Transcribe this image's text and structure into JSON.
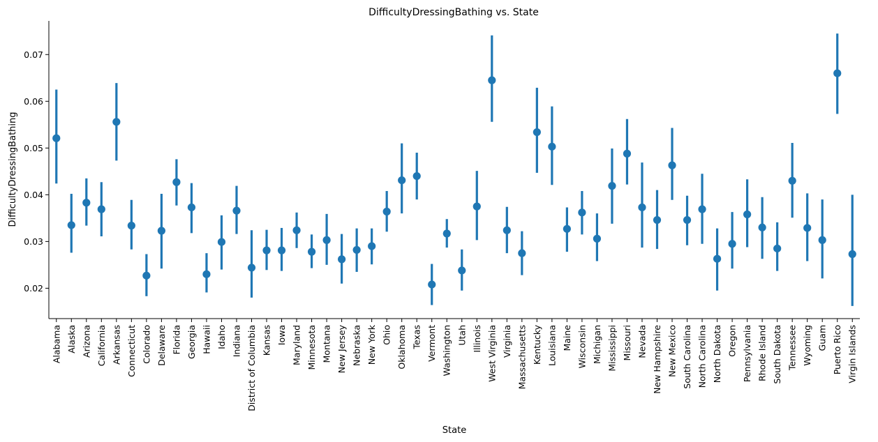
{
  "chart_data": {
    "type": "point",
    "title": "DifficultyDressingBathing vs. State",
    "xlabel": "State",
    "ylabel": "DifficultyDressingBathing",
    "ylim": [
      0.0135,
      0.0772
    ],
    "yticks": [
      0.02,
      0.03,
      0.04,
      0.05,
      0.06,
      0.07
    ],
    "ytick_labels": [
      "0.02",
      "0.03",
      "0.04",
      "0.05",
      "0.06",
      "0.07"
    ],
    "grid": false,
    "color": "#1f77b4",
    "categories": [
      "Alabama",
      "Alaska",
      "Arizona",
      "California",
      "Arkansas",
      "Connecticut",
      "Colorado",
      "Delaware",
      "Florida",
      "Georgia",
      "Hawaii",
      "Idaho",
      "Indiana",
      "District of Columbia",
      "Kansas",
      "Iowa",
      "Maryland",
      "Minnesota",
      "Montana",
      "New Jersey",
      "Nebraska",
      "New York",
      "Ohio",
      "Oklahoma",
      "Texas",
      "Vermont",
      "Washington",
      "Utah",
      "Illinois",
      "West Virginia",
      "Virginia",
      "Massachusetts",
      "Kentucky",
      "Louisiana",
      "Maine",
      "Wisconsin",
      "Michigan",
      "Mississippi",
      "Missouri",
      "Nevada",
      "New Hampshire",
      "New Mexico",
      "South Carolina",
      "North Carolina",
      "North Dakota",
      "Oregon",
      "Pennsylvania",
      "Rhode Island",
      "South Dakota",
      "Tennessee",
      "Wyoming",
      "Guam",
      "Puerto Rico",
      "Virgin Islands"
    ],
    "values": [
      0.0521,
      0.0335,
      0.0383,
      0.0369,
      0.0556,
      0.0334,
      0.0227,
      0.0323,
      0.0427,
      0.0373,
      0.023,
      0.0299,
      0.0366,
      0.0244,
      0.0281,
      0.0281,
      0.0324,
      0.0278,
      0.0303,
      0.0262,
      0.0282,
      0.029,
      0.0364,
      0.0431,
      0.044,
      0.0208,
      0.0317,
      0.0238,
      0.0375,
      0.0645,
      0.0324,
      0.0275,
      0.0534,
      0.0503,
      0.0327,
      0.0362,
      0.0306,
      0.0419,
      0.0488,
      0.0373,
      0.0346,
      0.0463,
      0.0346,
      0.0369,
      0.0263,
      0.0295,
      0.0358,
      0.033,
      0.0285,
      0.043,
      0.0329,
      0.0303,
      0.066,
      0.0273
    ],
    "ci_low": [
      0.0424,
      0.0276,
      0.0334,
      0.0311,
      0.0473,
      0.0283,
      0.0183,
      0.0242,
      0.0377,
      0.0318,
      0.0191,
      0.024,
      0.0316,
      0.018,
      0.0239,
      0.0237,
      0.0286,
      0.0243,
      0.025,
      0.021,
      0.0235,
      0.0251,
      0.0321,
      0.036,
      0.039,
      0.0164,
      0.0287,
      0.0195,
      0.0303,
      0.0556,
      0.0275,
      0.0228,
      0.0447,
      0.0421,
      0.0278,
      0.0315,
      0.0258,
      0.0338,
      0.0422,
      0.0287,
      0.0284,
      0.0389,
      0.0292,
      0.0295,
      0.0195,
      0.0242,
      0.0288,
      0.0263,
      0.0237,
      0.0351,
      0.0258,
      0.0221,
      0.0573,
      0.0162
    ],
    "ci_high": [
      0.0625,
      0.0402,
      0.0435,
      0.0427,
      0.0639,
      0.0389,
      0.0273,
      0.0402,
      0.0476,
      0.0425,
      0.0275,
      0.0356,
      0.0419,
      0.0324,
      0.0325,
      0.0329,
      0.0362,
      0.0315,
      0.0359,
      0.0316,
      0.0328,
      0.0328,
      0.0408,
      0.051,
      0.049,
      0.0252,
      0.0348,
      0.0283,
      0.0451,
      0.0741,
      0.0374,
      0.0322,
      0.0629,
      0.0589,
      0.0373,
      0.0408,
      0.036,
      0.0499,
      0.0562,
      0.0469,
      0.041,
      0.0543,
      0.0398,
      0.0445,
      0.0328,
      0.0363,
      0.0433,
      0.0395,
      0.0341,
      0.0511,
      0.0403,
      0.039,
      0.0745,
      0.04
    ]
  }
}
